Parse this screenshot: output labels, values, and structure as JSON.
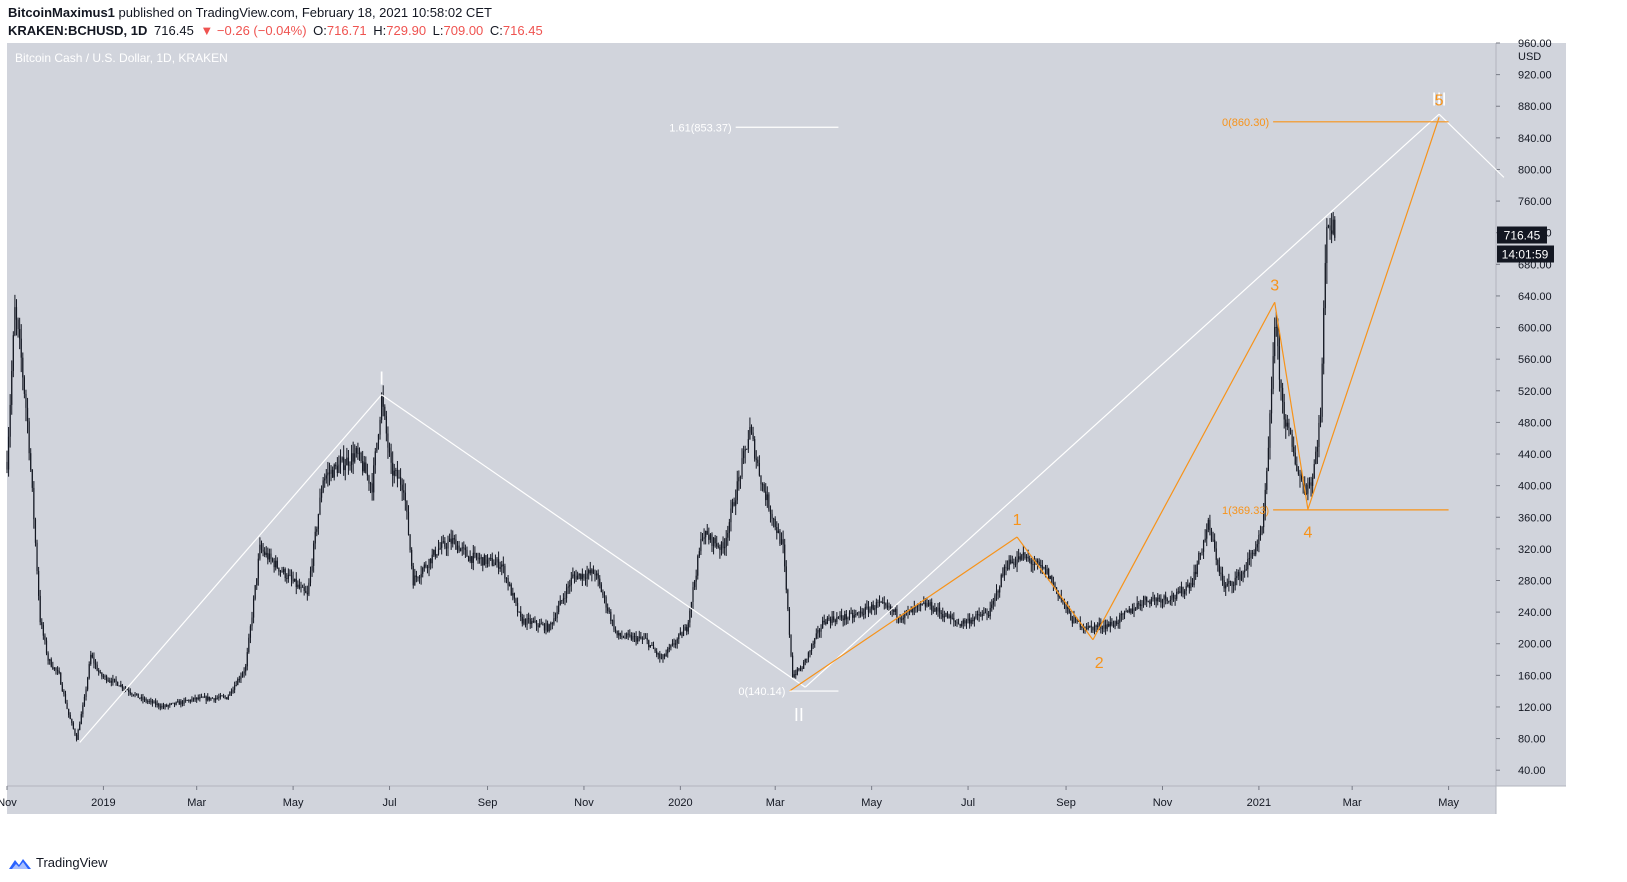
{
  "header": {
    "author": "BitcoinMaximus1",
    "published": "published on TradingView.com, February 18, 2021 10:58:02 CET"
  },
  "quote": {
    "symbol": "KRAKEN:BCHUSD, 1D",
    "last": "716.45",
    "change": "▼ −0.26 (−0.04%)",
    "o_label": "O:",
    "o_value": "716.71",
    "h_label": "H:",
    "h_value": "729.90",
    "l_label": "L:",
    "l_value": "709.00",
    "c_label": "C:",
    "c_value": "716.45"
  },
  "footer": {
    "brand": "TradingView"
  },
  "colors": {
    "plot_bg": "#d1d4dc",
    "candle": "#131722",
    "wave_white": "#ffffff",
    "wave_orange": "#f7931a",
    "price_badge": "#131722"
  },
  "chart_data": {
    "type": "candlestick",
    "title": "Bitcoin Cash / U.S. Dollar, 1D, KRAKEN",
    "currency": "USD",
    "ylim": [
      20,
      960
    ],
    "y_ticks": [
      "40.00",
      "80.00",
      "120.00",
      "160.00",
      "200.00",
      "240.00",
      "280.00",
      "320.00",
      "360.00",
      "400.00",
      "440.00",
      "480.00",
      "520.00",
      "560.00",
      "600.00",
      "640.00",
      "680.00",
      "720.00",
      "760.00",
      "800.00",
      "840.00",
      "880.00",
      "920.00",
      "960.00"
    ],
    "x_range": [
      "2018-11-01",
      "2021-05-31"
    ],
    "x_ticks": [
      {
        "label": "Nov",
        "date": "2018-11-01"
      },
      {
        "label": "2019",
        "date": "2019-01-01"
      },
      {
        "label": "Mar",
        "date": "2019-03-01"
      },
      {
        "label": "May",
        "date": "2019-05-01"
      },
      {
        "label": "Jul",
        "date": "2019-07-01"
      },
      {
        "label": "Sep",
        "date": "2019-09-01"
      },
      {
        "label": "Nov",
        "date": "2019-11-01"
      },
      {
        "label": "2020",
        "date": "2020-01-01"
      },
      {
        "label": "Mar",
        "date": "2020-03-01"
      },
      {
        "label": "May",
        "date": "2020-05-01"
      },
      {
        "label": "Jul",
        "date": "2020-07-01"
      },
      {
        "label": "Sep",
        "date": "2020-09-01"
      },
      {
        "label": "Nov",
        "date": "2020-11-01"
      },
      {
        "label": "2021",
        "date": "2021-01-01"
      },
      {
        "label": "Mar",
        "date": "2021-03-01"
      },
      {
        "label": "May",
        "date": "2021-05-01"
      }
    ],
    "price_path": [
      [
        "2018-11-01",
        430
      ],
      [
        "2018-11-06",
        620
      ],
      [
        "2018-11-10",
        560
      ],
      [
        "2018-11-14",
        480
      ],
      [
        "2018-11-18",
        360
      ],
      [
        "2018-11-22",
        230
      ],
      [
        "2018-11-27",
        180
      ],
      [
        "2018-12-04",
        160
      ],
      [
        "2018-12-10",
        110
      ],
      [
        "2018-12-15",
        80
      ],
      [
        "2018-12-20",
        130
      ],
      [
        "2018-12-24",
        185
      ],
      [
        "2018-12-30",
        160
      ],
      [
        "2019-01-10",
        150
      ],
      [
        "2019-01-25",
        130
      ],
      [
        "2019-02-08",
        120
      ],
      [
        "2019-02-28",
        130
      ],
      [
        "2019-03-20",
        132
      ],
      [
        "2019-04-01",
        170
      ],
      [
        "2019-04-10",
        320
      ],
      [
        "2019-04-25",
        290
      ],
      [
        "2019-05-10",
        260
      ],
      [
        "2019-05-20",
        410
      ],
      [
        "2019-06-10",
        440
      ],
      [
        "2019-06-20",
        400
      ],
      [
        "2019-06-26",
        510
      ],
      [
        "2019-07-02",
        420
      ],
      [
        "2019-07-10",
        400
      ],
      [
        "2019-07-16",
        280
      ],
      [
        "2019-08-01",
        320
      ],
      [
        "2019-08-10",
        330
      ],
      [
        "2019-08-20",
        310
      ],
      [
        "2019-09-10",
        300
      ],
      [
        "2019-09-22",
        230
      ],
      [
        "2019-10-10",
        220
      ],
      [
        "2019-10-25",
        285
      ],
      [
        "2019-11-08",
        290
      ],
      [
        "2019-11-22",
        210
      ],
      [
        "2019-12-10",
        205
      ],
      [
        "2019-12-20",
        180
      ],
      [
        "2020-01-05",
        220
      ],
      [
        "2020-01-15",
        340
      ],
      [
        "2020-01-28",
        320
      ],
      [
        "2020-02-05",
        390
      ],
      [
        "2020-02-14",
        470
      ],
      [
        "2020-02-22",
        400
      ],
      [
        "2020-03-06",
        320
      ],
      [
        "2020-03-12",
        160
      ],
      [
        "2020-03-18",
        170
      ],
      [
        "2020-04-01",
        230
      ],
      [
        "2020-04-20",
        235
      ],
      [
        "2020-05-05",
        250
      ],
      [
        "2020-05-20",
        235
      ],
      [
        "2020-06-05",
        250
      ],
      [
        "2020-06-25",
        225
      ],
      [
        "2020-07-15",
        240
      ],
      [
        "2020-07-25",
        300
      ],
      [
        "2020-08-05",
        310
      ],
      [
        "2020-08-20",
        290
      ],
      [
        "2020-09-05",
        230
      ],
      [
        "2020-09-15",
        220
      ],
      [
        "2020-10-01",
        225
      ],
      [
        "2020-10-20",
        255
      ],
      [
        "2020-11-10",
        260
      ],
      [
        "2020-11-20",
        280
      ],
      [
        "2020-11-30",
        350
      ],
      [
        "2020-12-10",
        270
      ],
      [
        "2020-12-22",
        290
      ],
      [
        "2021-01-03",
        340
      ],
      [
        "2021-01-07",
        440
      ],
      [
        "2021-01-11",
        610
      ],
      [
        "2021-01-16",
        500
      ],
      [
        "2021-01-24",
        430
      ],
      [
        "2021-01-30",
        395
      ],
      [
        "2021-02-04",
        410
      ],
      [
        "2021-02-09",
        490
      ],
      [
        "2021-02-13",
        740
      ],
      [
        "2021-02-18",
        716.45
      ]
    ],
    "last_price": "716.45",
    "countdown": "14:01:59",
    "wave_count_white": [
      {
        "label": "I",
        "date": "2019-06-26",
        "price": 515
      },
      {
        "label": "II",
        "date": "2020-03-16",
        "price": 140
      },
      {
        "label": "III",
        "date": "2021-04-25",
        "price": 868
      }
    ],
    "wave_lines_white": [
      [
        [
          "2018-12-17",
          75
        ],
        [
          "2019-06-26",
          515
        ]
      ],
      [
        [
          "2019-06-26",
          515
        ],
        [
          "2020-03-20",
          145
        ]
      ],
      [
        [
          "2020-03-20",
          145
        ],
        [
          "2021-04-25",
          870
        ]
      ],
      [
        [
          "2021-04-25",
          870
        ],
        [
          "2021-06-05",
          790
        ]
      ]
    ],
    "wave_count_orange": [
      {
        "label": "1",
        "date": "2020-08-01",
        "price": 335
      },
      {
        "label": "2",
        "date": "2020-09-22",
        "price": 205
      },
      {
        "label": "3",
        "date": "2021-01-11",
        "price": 632
      },
      {
        "label": "4",
        "date": "2021-02-01",
        "price": 370
      },
      {
        "label": "5",
        "date": "2021-04-25",
        "price": 866
      }
    ],
    "wave_lines_orange": [
      [
        [
          "2020-03-10",
          140
        ],
        [
          "2020-08-01",
          335
        ]
      ],
      [
        [
          "2020-08-01",
          335
        ],
        [
          "2020-09-18",
          205
        ]
      ],
      [
        [
          "2020-09-18",
          205
        ],
        [
          "2021-01-11",
          632
        ]
      ],
      [
        [
          "2021-01-11",
          632
        ],
        [
          "2021-02-01",
          370
        ]
      ],
      [
        [
          "2021-02-01",
          370
        ],
        [
          "2021-04-25",
          866
        ]
      ]
    ],
    "fib_levels": [
      {
        "label": "1.61(853.37)",
        "price": 853.37,
        "color": "#ffffff",
        "from": "2020-02-05",
        "to": "2020-04-10"
      },
      {
        "label": "0(140.14)",
        "price": 140.14,
        "color": "#ffffff",
        "from": "2020-03-10",
        "to": "2020-04-10"
      },
      {
        "label": "0(860.30)",
        "price": 860.3,
        "color": "#f7931a",
        "from": "2021-01-10",
        "to": "2021-05-01"
      },
      {
        "label": "1(369.33)",
        "price": 369.33,
        "color": "#f7931a",
        "from": "2021-01-10",
        "to": "2021-05-01"
      }
    ]
  }
}
